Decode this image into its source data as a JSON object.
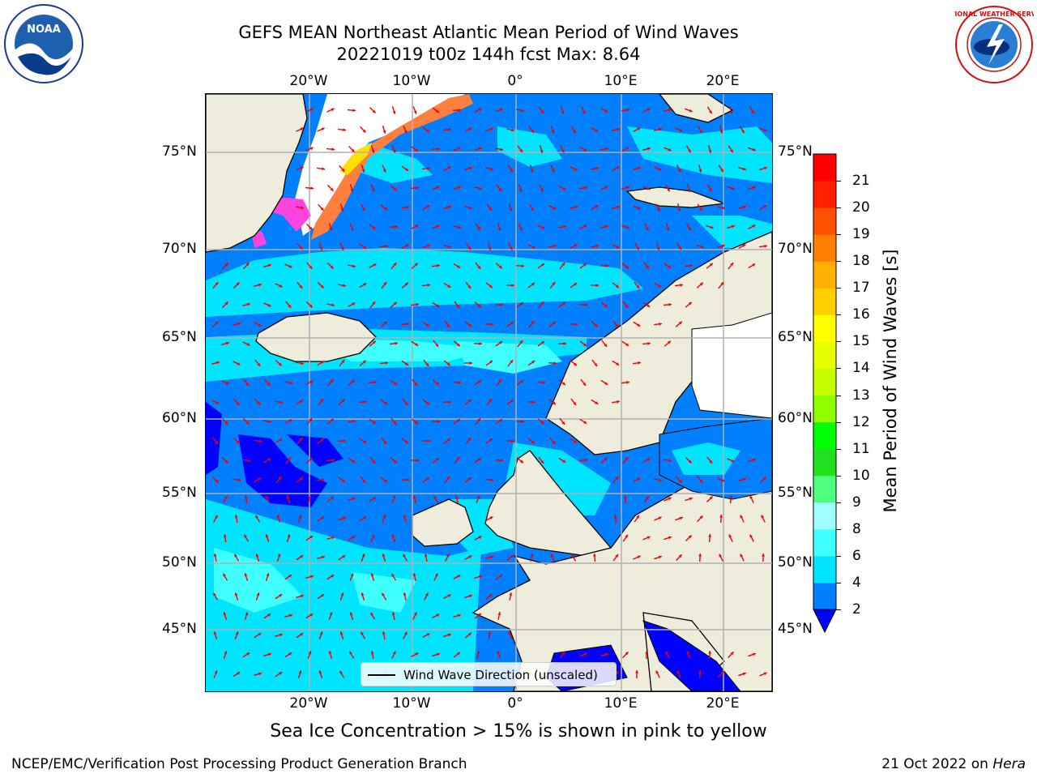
{
  "title": {
    "line1": "GEFS MEAN Northeast Atlantic Mean Period of Wind Waves",
    "line2": "20221019 t00z 144h fcst   Max: 8.64"
  },
  "logos": {
    "left": "NOAA",
    "right": "NATIONAL WEATHER SERVICE",
    "left_ring": "NATIONAL OCEANIC AND ATMOSPHERIC ADMINISTRATION · U.S. DEPARTMENT OF COMMERCE"
  },
  "map": {
    "lon_labels": [
      "20°W",
      "10°W",
      "0°",
      "10°E",
      "20°E"
    ],
    "lat_labels": [
      "75°N",
      "70°N",
      "65°N",
      "60°N",
      "55°N",
      "50°N",
      "45°N"
    ],
    "legend_label": "Wind Wave Direction (unscaled)",
    "colors": {
      "land": "#eeeddc",
      "ice_white": "#ffffff",
      "arrow": "#ee0000",
      "grid": "#b0b0b0"
    }
  },
  "colorbar": {
    "label": "Mean Period of Wind Waves [s]",
    "ticks": [
      "2",
      "4",
      "6",
      "8",
      "9",
      "10",
      "11",
      "12",
      "13",
      "14",
      "15",
      "16",
      "17",
      "18",
      "19",
      "20",
      "21"
    ],
    "colors": [
      "#0000ff",
      "#0080ff",
      "#00e5ff",
      "#40ffff",
      "#a0ffff",
      "#50ff80",
      "#20e020",
      "#00ff00",
      "#90ff00",
      "#c8ff00",
      "#e8ff00",
      "#ffff00",
      "#ffd000",
      "#ffb000",
      "#ff8000",
      "#ff5000",
      "#ff2000",
      "#ff0000"
    ]
  },
  "caption": "Sea Ice Concentration > 15% is shown in pink to yellow",
  "footer": {
    "left": "NCEP/EMC/Verification Post Processing Product Generation Branch",
    "right_date": "21 Oct 2022 on ",
    "right_machine": "Hera"
  }
}
